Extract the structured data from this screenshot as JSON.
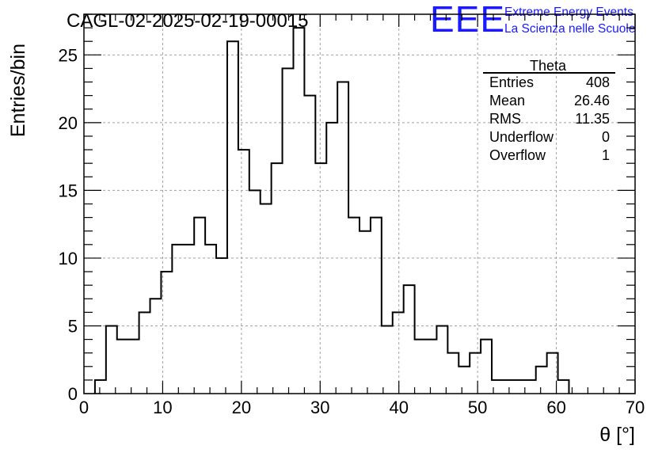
{
  "chart_data": {
    "type": "bar",
    "style": "histogram-step",
    "title": "CAGL-02-2025-02-19-00015",
    "xlabel": "θ [°]",
    "ylabel": "Entries/bin",
    "xlim": [
      0,
      70
    ],
    "ylim": [
      0,
      28
    ],
    "grid": true,
    "bin_width": 1.4,
    "bin_edges_start": 1.4,
    "x_ticks": [
      "0",
      "10",
      "20",
      "30",
      "40",
      "50",
      "60",
      "70"
    ],
    "y_ticks": [
      "0",
      "5",
      "10",
      "15",
      "20",
      "25"
    ],
    "x_tick_values": [
      0,
      10,
      20,
      30,
      40,
      50,
      60,
      70
    ],
    "y_tick_values": [
      0,
      5,
      10,
      15,
      20,
      25
    ],
    "values": [
      1,
      5,
      4,
      4,
      6,
      7,
      9,
      11,
      11,
      13,
      11,
      10,
      26,
      18,
      15,
      14,
      17,
      24,
      27,
      22,
      17,
      20,
      23,
      13,
      12,
      13,
      5,
      6,
      8,
      4,
      4,
      5,
      3,
      2,
      3,
      4,
      1,
      1,
      1,
      1,
      2,
      3,
      1
    ],
    "line_color": "#000000",
    "grid_color": "#a0a0a0",
    "stats": {
      "name": "Theta",
      "rows": [
        {
          "label": "Entries",
          "value": "408"
        },
        {
          "label": "Mean",
          "value": "26.46"
        },
        {
          "label": "RMS",
          "value": "11.35"
        },
        {
          "label": "Underflow",
          "value": "0"
        },
        {
          "label": "Overflow",
          "value": "1"
        }
      ]
    }
  },
  "logo": {
    "mark": "EEE",
    "line1": "Extreme Energy Events",
    "line2": "La Scienza nelle Scuole",
    "color": "#1a1aff"
  }
}
